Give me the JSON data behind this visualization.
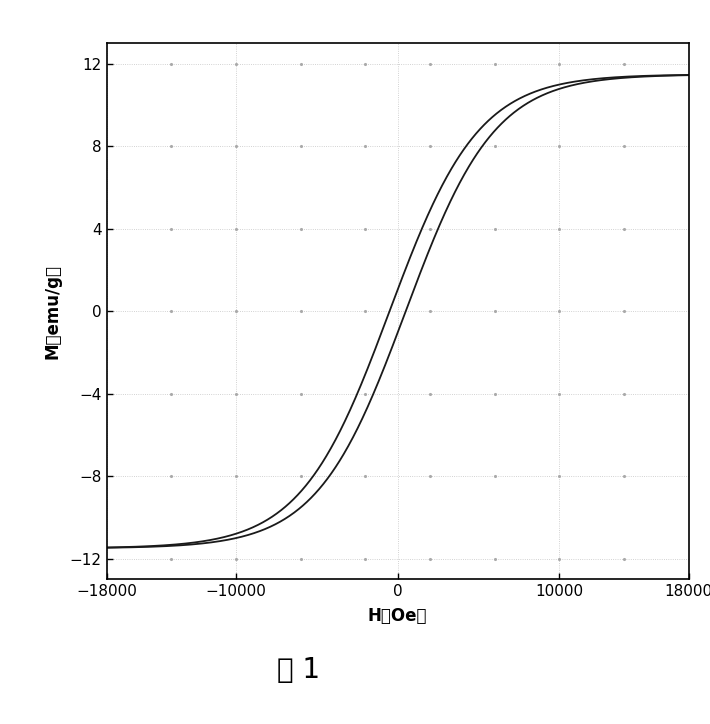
{
  "xlim": [
    -18000,
    18000
  ],
  "ylim": [
    -13,
    13
  ],
  "xticks": [
    -18000,
    -10000,
    0,
    10000,
    18000
  ],
  "yticks": [
    -12,
    -8,
    -4,
    0,
    4,
    8,
    12
  ],
  "xlabel": "H（Oe）",
  "ylabel": "M（emu/g）",
  "caption": "图 1",
  "line_color": "#1a1a1a",
  "background_color": "#ffffff",
  "fig_background": "#ffffff",
  "Ms": 11.5,
  "Hc": 500,
  "Hk": 5500,
  "grid_color": "#aaaaaa",
  "grid_dot_spacing_x": 4000,
  "grid_dot_spacing_y": 4
}
